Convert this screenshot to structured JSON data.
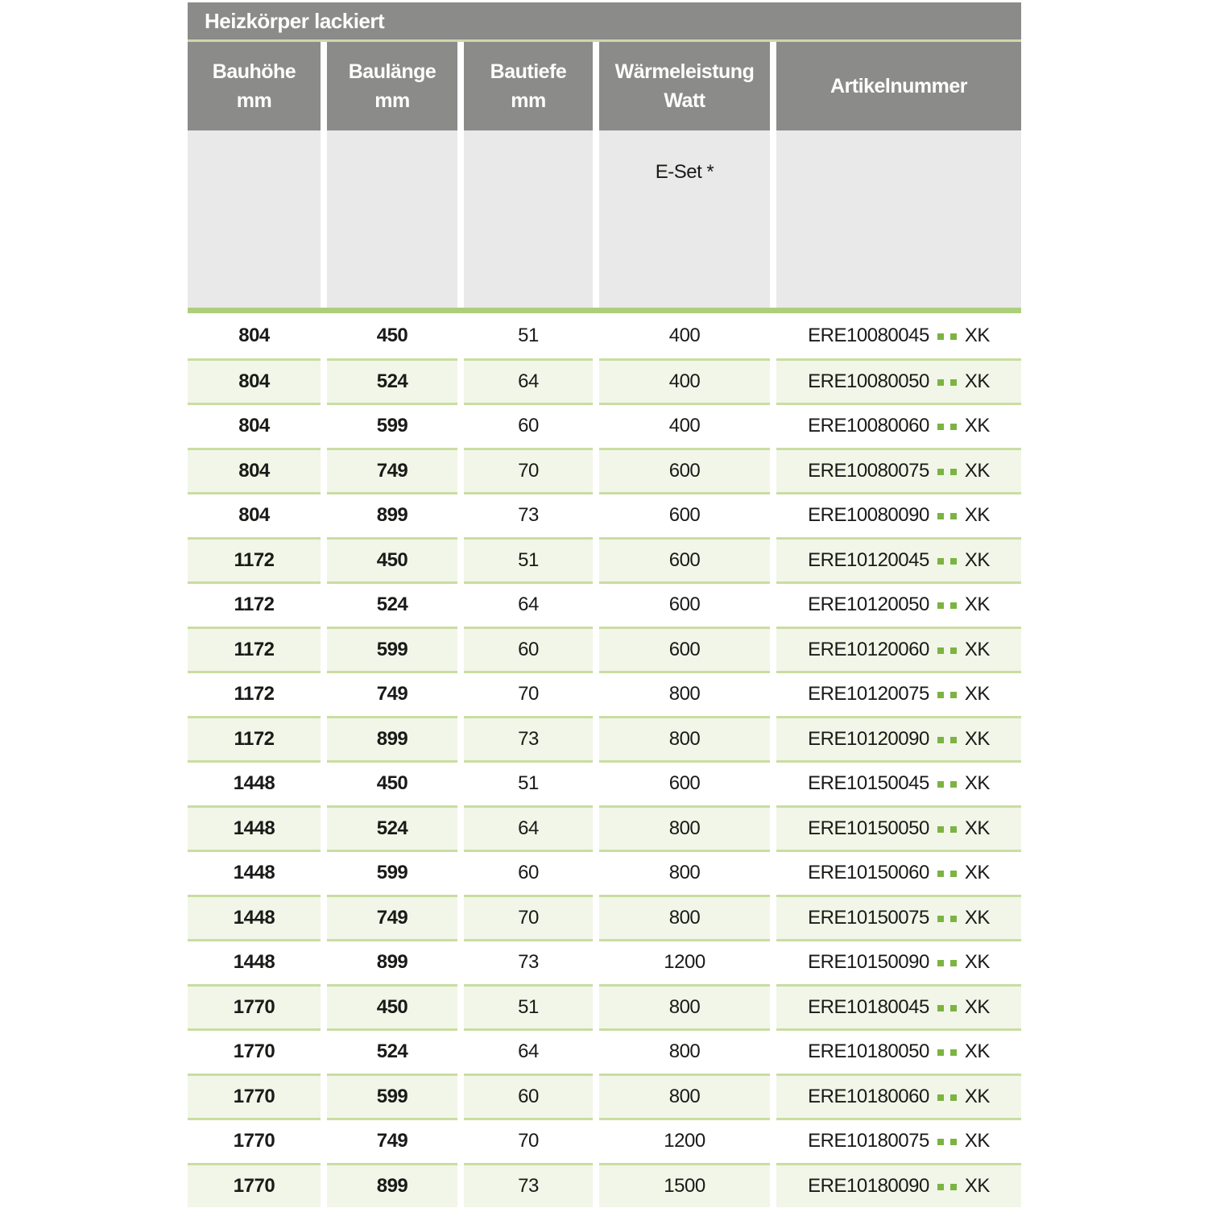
{
  "table": {
    "title": "Heizkörper lackiert",
    "columns": [
      {
        "line1": "Bauhöhe",
        "line2": "mm"
      },
      {
        "line1": "Baulänge",
        "line2": "mm"
      },
      {
        "line1": "Bautiefe",
        "line2": "mm"
      },
      {
        "line1": "Wärmeleistung",
        "line2": "Watt"
      },
      {
        "line1": "Artikelnummer",
        "line2": ""
      }
    ],
    "subheader": {
      "eset_label": "E-Set *"
    },
    "rows": [
      {
        "bauhoehe": "804",
        "baulaenge": "450",
        "bautiefe": "51",
        "watt": "400",
        "artikel_code": "ERE10080045",
        "artikel_suffix": "XK"
      },
      {
        "bauhoehe": "804",
        "baulaenge": "524",
        "bautiefe": "64",
        "watt": "400",
        "artikel_code": "ERE10080050",
        "artikel_suffix": "XK"
      },
      {
        "bauhoehe": "804",
        "baulaenge": "599",
        "bautiefe": "60",
        "watt": "400",
        "artikel_code": "ERE10080060",
        "artikel_suffix": "XK"
      },
      {
        "bauhoehe": "804",
        "baulaenge": "749",
        "bautiefe": "70",
        "watt": "600",
        "artikel_code": "ERE10080075",
        "artikel_suffix": "XK"
      },
      {
        "bauhoehe": "804",
        "baulaenge": "899",
        "bautiefe": "73",
        "watt": "600",
        "artikel_code": "ERE10080090",
        "artikel_suffix": "XK"
      },
      {
        "bauhoehe": "1172",
        "baulaenge": "450",
        "bautiefe": "51",
        "watt": "600",
        "artikel_code": "ERE10120045",
        "artikel_suffix": "XK"
      },
      {
        "bauhoehe": "1172",
        "baulaenge": "524",
        "bautiefe": "64",
        "watt": "600",
        "artikel_code": "ERE10120050",
        "artikel_suffix": "XK"
      },
      {
        "bauhoehe": "1172",
        "baulaenge": "599",
        "bautiefe": "60",
        "watt": "600",
        "artikel_code": "ERE10120060",
        "artikel_suffix": "XK"
      },
      {
        "bauhoehe": "1172",
        "baulaenge": "749",
        "bautiefe": "70",
        "watt": "800",
        "artikel_code": "ERE10120075",
        "artikel_suffix": "XK"
      },
      {
        "bauhoehe": "1172",
        "baulaenge": "899",
        "bautiefe": "73",
        "watt": "800",
        "artikel_code": "ERE10120090",
        "artikel_suffix": "XK"
      },
      {
        "bauhoehe": "1448",
        "baulaenge": "450",
        "bautiefe": "51",
        "watt": "600",
        "artikel_code": "ERE10150045",
        "artikel_suffix": "XK"
      },
      {
        "bauhoehe": "1448",
        "baulaenge": "524",
        "bautiefe": "64",
        "watt": "800",
        "artikel_code": "ERE10150050",
        "artikel_suffix": "XK"
      },
      {
        "bauhoehe": "1448",
        "baulaenge": "599",
        "bautiefe": "60",
        "watt": "800",
        "artikel_code": "ERE10150060",
        "artikel_suffix": "XK"
      },
      {
        "bauhoehe": "1448",
        "baulaenge": "749",
        "bautiefe": "70",
        "watt": "800",
        "artikel_code": "ERE10150075",
        "artikel_suffix": "XK"
      },
      {
        "bauhoehe": "1448",
        "baulaenge": "899",
        "bautiefe": "73",
        "watt": "1200",
        "artikel_code": "ERE10150090",
        "artikel_suffix": "XK"
      },
      {
        "bauhoehe": "1770",
        "baulaenge": "450",
        "bautiefe": "51",
        "watt": "800",
        "artikel_code": "ERE10180045",
        "artikel_suffix": "XK"
      },
      {
        "bauhoehe": "1770",
        "baulaenge": "524",
        "bautiefe": "64",
        "watt": "800",
        "artikel_code": "ERE10180050",
        "artikel_suffix": "XK"
      },
      {
        "bauhoehe": "1770",
        "baulaenge": "599",
        "bautiefe": "60",
        "watt": "800",
        "artikel_code": "ERE10180060",
        "artikel_suffix": "XK"
      },
      {
        "bauhoehe": "1770",
        "baulaenge": "749",
        "bautiefe": "70",
        "watt": "1200",
        "artikel_code": "ERE10180075",
        "artikel_suffix": "XK"
      },
      {
        "bauhoehe": "1770",
        "baulaenge": "899",
        "bautiefe": "73",
        "watt": "1500",
        "artikel_code": "ERE10180090",
        "artikel_suffix": "XK"
      }
    ]
  },
  "colors": {
    "header_gray": "#8b8b89",
    "subheader_gray": "#e9e9e9",
    "accent_green": "#7cb342",
    "bar_green": "#adcf7c",
    "line_green": "#c9dda1",
    "row_green": "#f1f6e8",
    "divider_green": "#cdd8ab",
    "text_dark": "#1a1a18"
  }
}
